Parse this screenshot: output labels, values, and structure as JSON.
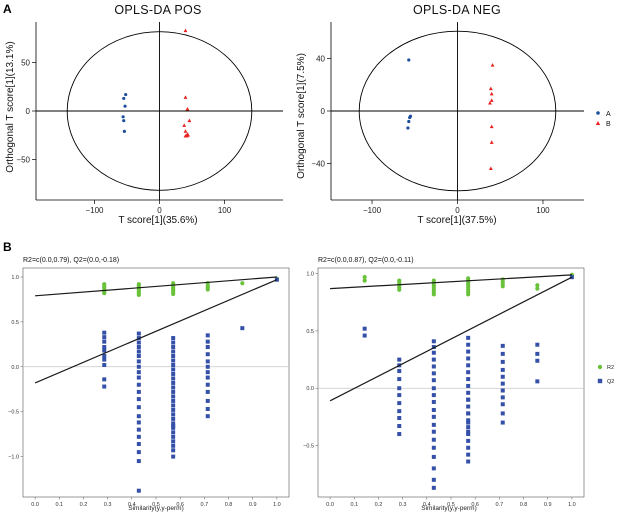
{
  "panel_labels": {
    "a": "A",
    "b": "B"
  },
  "colors": {
    "A": "#1f4e9c",
    "B": "#e8231f",
    "R2": "#69c23a",
    "Q2": "#3550a8",
    "axis": "#000000"
  },
  "chart_data": [
    {
      "type": "scatter",
      "title": "OPLS-DA POS",
      "xlabel": "T score[1](35.6%)",
      "ylabel": "Orthogonal T score[1](13.1%)",
      "xlim": [
        -190,
        190
      ],
      "ylim": [
        -92,
        92
      ],
      "xticks": [
        -100,
        0,
        100
      ],
      "yticks": [
        -50,
        0,
        50
      ],
      "ellipse": {
        "rx": 142,
        "ry": 82
      },
      "series": [
        {
          "name": "A",
          "marker": "circle",
          "color": "#1f4e9c",
          "x": [
            -52,
            -55,
            -53,
            -56,
            -55,
            -54
          ],
          "y": [
            17,
            13,
            5,
            -6,
            -10,
            -21
          ]
        },
        {
          "name": "B",
          "marker": "triangle",
          "color": "#e8231f",
          "x": [
            40,
            40,
            43,
            46,
            38,
            40,
            43,
            44,
            42,
            40
          ],
          "y": [
            83,
            14,
            2,
            -10,
            -15,
            -21,
            -24,
            -25,
            -26,
            -26
          ]
        }
      ]
    },
    {
      "type": "scatter",
      "title": "OPLS-DA NEG",
      "xlabel": "T score[1](37.5%)",
      "ylabel": "Orthogonal T score[1](7.5%)",
      "xlim": [
        -148,
        148
      ],
      "ylim": [
        -68,
        68
      ],
      "xticks": [
        -100,
        0,
        100
      ],
      "yticks": [
        -40,
        0,
        40
      ],
      "ellipse": {
        "rx": 115,
        "ry": 61
      },
      "legend": {
        "position": "right",
        "entries": [
          "A",
          "B"
        ]
      },
      "series": [
        {
          "name": "A",
          "marker": "circle",
          "color": "#1f4e9c",
          "x": [
            -57,
            -55,
            -56,
            -57,
            -58
          ],
          "y": [
            39,
            -4,
            -5,
            -8,
            -13
          ]
        },
        {
          "name": "B",
          "marker": "triangle",
          "color": "#e8231f",
          "x": [
            41,
            39,
            40,
            40,
            38,
            40,
            40,
            39
          ],
          "y": [
            35,
            17,
            13,
            8,
            6,
            -12,
            -24,
            -44
          ]
        }
      ]
    },
    {
      "type": "scatter",
      "title": "",
      "annotation": "R2=c(0.0,0.79), Q2=(0.0,-0.18)",
      "xlabel": "Similarity(y,y-perm)",
      "ylabel": "",
      "xlim": [
        -0.05,
        1.05
      ],
      "ylim": [
        -1.45,
        1.1
      ],
      "xticks": [
        0.0,
        0.1,
        0.2,
        0.3,
        0.4,
        0.5,
        0.6,
        0.7,
        0.8,
        0.9,
        1.0
      ],
      "yticks": [
        -1.0,
        -0.5,
        0.0,
        0.5,
        1.0
      ],
      "regression_lines": [
        {
          "name": "R2",
          "x": [
            0.0,
            1.0
          ],
          "y": [
            0.79,
            1.0
          ]
        },
        {
          "name": "Q2",
          "x": [
            0.0,
            1.0
          ],
          "y": [
            -0.18,
            0.97
          ]
        }
      ],
      "series": [
        {
          "name": "R2",
          "marker": "circle",
          "color": "#69c23a",
          "x": [
            0.286,
            0.286,
            0.286,
            0.286,
            0.286,
            0.286,
            0.429,
            0.429,
            0.429,
            0.429,
            0.429,
            0.429,
            0.429,
            0.571,
            0.571,
            0.571,
            0.571,
            0.571,
            0.571,
            0.571,
            0.714,
            0.714,
            0.714,
            0.714,
            0.857,
            1.0
          ],
          "y": [
            0.92,
            0.9,
            0.88,
            0.86,
            0.84,
            0.82,
            0.92,
            0.9,
            0.88,
            0.86,
            0.84,
            0.82,
            0.8,
            0.93,
            0.91,
            0.89,
            0.87,
            0.85,
            0.83,
            0.81,
            0.93,
            0.9,
            0.88,
            0.86,
            0.93,
            0.98
          ]
        },
        {
          "name": "Q2",
          "marker": "square",
          "color": "#3550a8",
          "x": [
            0.286,
            0.286,
            0.286,
            0.286,
            0.286,
            0.286,
            0.286,
            0.286,
            0.286,
            0.286,
            0.429,
            0.429,
            0.429,
            0.429,
            0.429,
            0.429,
            0.429,
            0.429,
            0.429,
            0.429,
            0.429,
            0.429,
            0.429,
            0.429,
            0.429,
            0.429,
            0.429,
            0.429,
            0.429,
            0.429,
            0.429,
            0.429,
            0.571,
            0.571,
            0.571,
            0.571,
            0.571,
            0.571,
            0.571,
            0.571,
            0.571,
            0.571,
            0.571,
            0.571,
            0.571,
            0.571,
            0.571,
            0.571,
            0.571,
            0.571,
            0.571,
            0.571,
            0.571,
            0.571,
            0.571,
            0.571,
            0.571,
            0.571,
            0.571,
            0.571,
            0.714,
            0.714,
            0.714,
            0.714,
            0.714,
            0.714,
            0.714,
            0.714,
            0.714,
            0.714,
            0.714,
            0.714,
            0.714,
            0.857,
            1.0
          ],
          "y": [
            0.38,
            0.33,
            0.28,
            0.22,
            0.18,
            0.12,
            0.08,
            0.02,
            -0.14,
            -0.22,
            0.37,
            0.32,
            0.27,
            0.22,
            0.17,
            0.12,
            0.06,
            0.0,
            -0.06,
            -0.12,
            -0.2,
            -0.28,
            -0.36,
            -0.45,
            -0.55,
            -0.62,
            -0.7,
            -0.78,
            -0.86,
            -0.95,
            -1.05,
            -1.38,
            0.32,
            0.27,
            0.22,
            0.17,
            0.12,
            0.07,
            0.02,
            -0.03,
            -0.08,
            -0.13,
            -0.18,
            -0.23,
            -0.28,
            -0.33,
            -0.38,
            -0.43,
            -0.48,
            -0.53,
            -0.58,
            -0.63,
            -0.68,
            -0.73,
            -0.78,
            -0.83,
            -0.88,
            -0.93,
            -0.66,
            -1.0,
            0.35,
            0.28,
            0.22,
            0.14,
            0.06,
            0.0,
            -0.06,
            -0.12,
            -0.2,
            -0.28,
            -0.38,
            -0.47,
            -0.55,
            0.43,
            0.97
          ]
        }
      ]
    },
    {
      "type": "scatter",
      "title": "",
      "annotation": "R2=c(0.0,0.87), Q2=(0.0,-0.11)",
      "xlabel": "Similarity(y,y-perm)",
      "ylabel": "",
      "xlim": [
        -0.05,
        1.05
      ],
      "ylim": [
        -0.95,
        1.05
      ],
      "xticks": [
        0.0,
        0.1,
        0.2,
        0.3,
        0.4,
        0.5,
        0.6,
        0.7,
        0.8,
        0.9,
        1.0
      ],
      "yticks": [
        -0.5,
        0.0,
        0.5,
        1.0
      ],
      "regression_lines": [
        {
          "name": "R2",
          "x": [
            0.0,
            1.0
          ],
          "y": [
            0.87,
            0.99
          ]
        },
        {
          "name": "Q2",
          "x": [
            0.0,
            1.0
          ],
          "y": [
            -0.11,
            0.97
          ]
        }
      ],
      "legend": {
        "position": "right",
        "entries": [
          "R2",
          "Q2"
        ]
      },
      "series": [
        {
          "name": "R2",
          "marker": "circle",
          "color": "#69c23a",
          "x": [
            0.143,
            0.143,
            0.286,
            0.286,
            0.286,
            0.286,
            0.286,
            0.429,
            0.429,
            0.429,
            0.429,
            0.429,
            0.429,
            0.429,
            0.571,
            0.571,
            0.571,
            0.571,
            0.571,
            0.571,
            0.571,
            0.571,
            0.714,
            0.714,
            0.714,
            0.714,
            0.857,
            0.857,
            1.0
          ],
          "y": [
            0.97,
            0.94,
            0.94,
            0.92,
            0.9,
            0.88,
            0.86,
            0.94,
            0.92,
            0.9,
            0.88,
            0.86,
            0.84,
            0.82,
            0.96,
            0.94,
            0.92,
            0.9,
            0.88,
            0.86,
            0.84,
            0.82,
            0.95,
            0.93,
            0.91,
            0.89,
            0.9,
            0.87,
            0.99
          ]
        },
        {
          "name": "Q2",
          "marker": "square",
          "color": "#3550a8",
          "x": [
            0.143,
            0.143,
            0.286,
            0.286,
            0.286,
            0.286,
            0.286,
            0.286,
            0.286,
            0.286,
            0.286,
            0.286,
            0.286,
            0.429,
            0.429,
            0.429,
            0.429,
            0.429,
            0.429,
            0.429,
            0.429,
            0.429,
            0.429,
            0.429,
            0.429,
            0.429,
            0.429,
            0.429,
            0.429,
            0.429,
            0.429,
            0.429,
            0.429,
            0.571,
            0.571,
            0.571,
            0.571,
            0.571,
            0.571,
            0.571,
            0.571,
            0.571,
            0.571,
            0.571,
            0.571,
            0.571,
            0.571,
            0.571,
            0.571,
            0.571,
            0.571,
            0.571,
            0.571,
            0.571,
            0.571,
            0.571,
            0.714,
            0.714,
            0.714,
            0.714,
            0.714,
            0.714,
            0.714,
            0.714,
            0.714,
            0.714,
            0.714,
            0.857,
            0.857,
            0.857,
            0.857,
            1.0
          ],
          "y": [
            0.52,
            0.46,
            0.25,
            0.2,
            0.15,
            0.08,
            0.0,
            -0.06,
            -0.13,
            -0.2,
            -0.26,
            -0.33,
            -0.4,
            0.41,
            0.36,
            0.31,
            0.25,
            0.19,
            0.13,
            0.07,
            0.0,
            -0.06,
            -0.12,
            -0.19,
            -0.25,
            -0.32,
            -0.38,
            -0.45,
            -0.52,
            -0.6,
            -0.7,
            -0.8,
            -0.87,
            0.44,
            0.38,
            0.32,
            0.26,
            0.2,
            0.14,
            0.08,
            0.02,
            -0.04,
            -0.1,
            -0.16,
            -0.22,
            -0.28,
            -0.34,
            -0.4,
            -0.46,
            -0.52,
            -0.58,
            -0.64,
            -0.1,
            -0.22,
            -0.3,
            -0.38,
            0.37,
            0.3,
            0.23,
            0.16,
            0.1,
            0.04,
            -0.02,
            -0.08,
            -0.14,
            -0.22,
            -0.3,
            0.38,
            0.3,
            0.24,
            0.06,
            0.97
          ]
        }
      ]
    }
  ]
}
